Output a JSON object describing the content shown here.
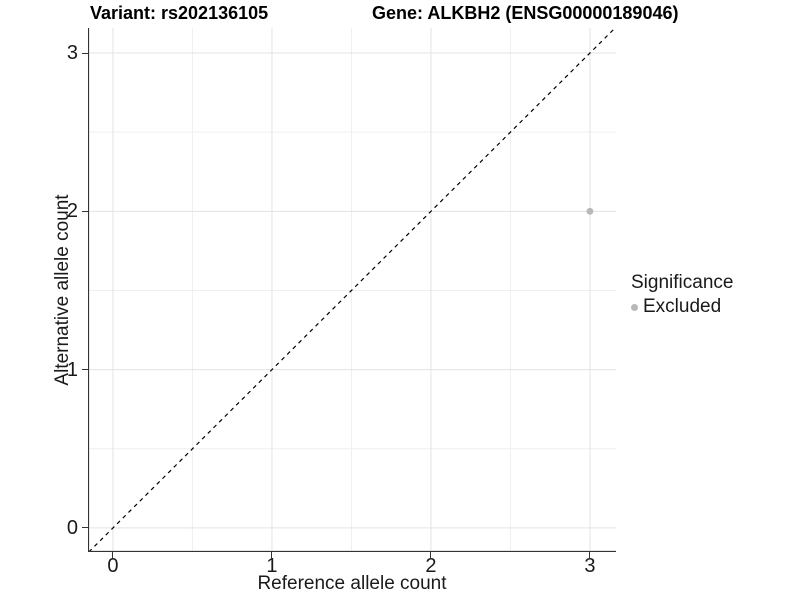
{
  "header": {
    "variant_title": "Variant: rs202136105",
    "gene_title": "Gene: ALKBH2 (ENSG00000189046)"
  },
  "legend": {
    "title": "Significance",
    "items": [
      {
        "label": "Excluded",
        "color": "#b8b8b8"
      }
    ]
  },
  "style": {
    "background": "#ffffff",
    "grid_major_color": "#e3e3e3",
    "grid_minor_color": "#efefef",
    "axis_color": "#333333",
    "text_color": "#1a1a1a",
    "point_color": "#b8b8b8",
    "reference_line_color": "#000000"
  },
  "chart_data": {
    "type": "scatter",
    "title": "Variant: rs202136105",
    "subtitle": "Gene: ALKBH2 (ENSG00000189046)",
    "xlabel": "Reference allele count",
    "ylabel": "Alternative allele count",
    "xlim": [
      -0.157,
      3.164
    ],
    "ylim": [
      -0.152,
      3.158
    ],
    "x_ticks": [
      0,
      1,
      2,
      3
    ],
    "y_ticks": [
      0,
      1,
      2,
      3
    ],
    "x_minor_ticks": [
      0.5,
      1.5,
      2.5
    ],
    "y_minor_ticks": [
      0.5,
      1.5,
      2.5
    ],
    "grid": "major and minor, light gray on white",
    "legend_position": "right",
    "series": [
      {
        "name": "Excluded",
        "color": "#b8b8b8",
        "marker_radius": 3.4,
        "points": [
          {
            "x": 3,
            "y": 2
          }
        ]
      }
    ],
    "reference_line": {
      "type": "identity",
      "equation": "y = x",
      "style": "dashed",
      "color": "#000000"
    }
  }
}
